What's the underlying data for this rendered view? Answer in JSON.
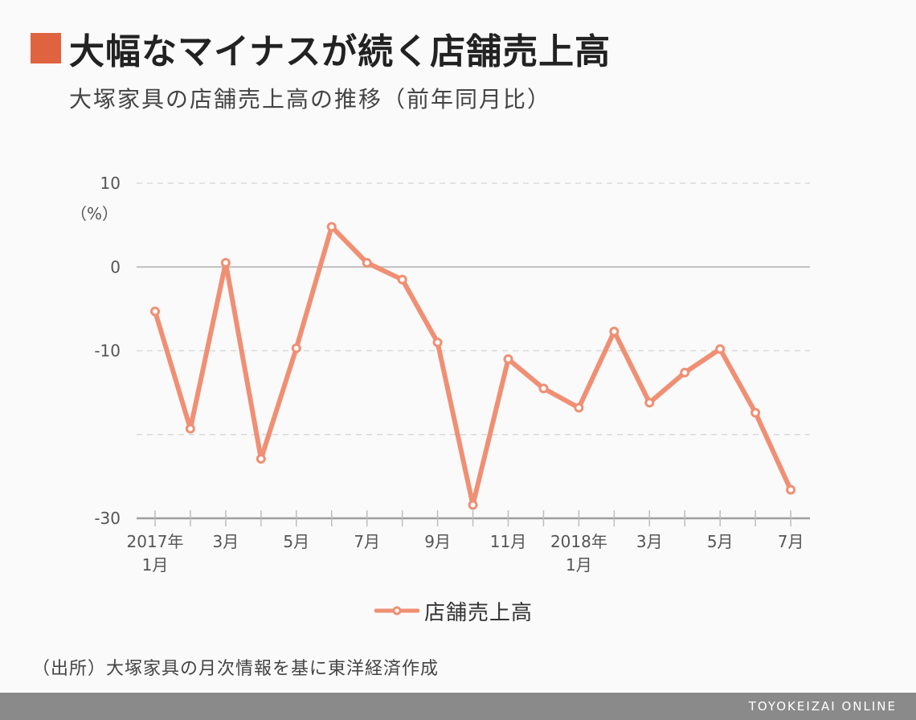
{
  "header": {
    "title": "大幅なマイナスが続く店舗売上高",
    "subtitle": "大塚家具の店舗売上高の推移（前年同月比）"
  },
  "chart_data": {
    "type": "line",
    "title": "大幅なマイナスが続く店舗売上高",
    "subtitle": "大塚家具の店舗売上高の推移（前年同月比）",
    "yunit_label": "（%）",
    "ylim": [
      -30,
      10
    ],
    "yticks": [
      10,
      0,
      -10,
      -20,
      -30
    ],
    "ytick_labels": [
      "10",
      "0",
      "-10",
      "",
      "-30"
    ],
    "x": [
      "2017-01",
      "2017-02",
      "2017-03",
      "2017-04",
      "2017-05",
      "2017-06",
      "2017-07",
      "2017-08",
      "2017-09",
      "2017-10",
      "2017-11",
      "2017-12",
      "2018-01",
      "2018-02",
      "2018-03",
      "2018-04",
      "2018-05",
      "2018-06",
      "2018-07"
    ],
    "xtick_labels": [
      [
        "2017年",
        "1月"
      ],
      [],
      [
        "3月"
      ],
      [],
      [
        "5月"
      ],
      [],
      [
        "7月"
      ],
      [],
      [
        "9月"
      ],
      [],
      [
        "11月"
      ],
      [],
      [
        "2018年",
        "1月"
      ],
      [],
      [
        "3月"
      ],
      [],
      [
        "5月"
      ],
      [],
      [
        "7月"
      ]
    ],
    "series": [
      {
        "name": "店舗売上高",
        "color": "#f08f73",
        "values": [
          -5.3,
          -19.3,
          0.5,
          -22.9,
          -9.7,
          4.8,
          0.5,
          -1.5,
          -9.0,
          -28.4,
          -11.0,
          -14.5,
          -16.8,
          -7.7,
          -16.2,
          -12.6,
          -9.8,
          -17.4,
          -26.6
        ]
      }
    ],
    "grid": true,
    "legend_position": "bottom-center"
  },
  "legend": {
    "label": "店舗売上高",
    "color": "#f08f73"
  },
  "source": "（出所）大塚家具の月次情報を基に東洋経済作成",
  "footer": {
    "brand": "TOYOKEIZAI ONLINE"
  },
  "colors": {
    "accent": "#e06340",
    "line": "#f08f73",
    "footer": "#8a8a8a"
  }
}
